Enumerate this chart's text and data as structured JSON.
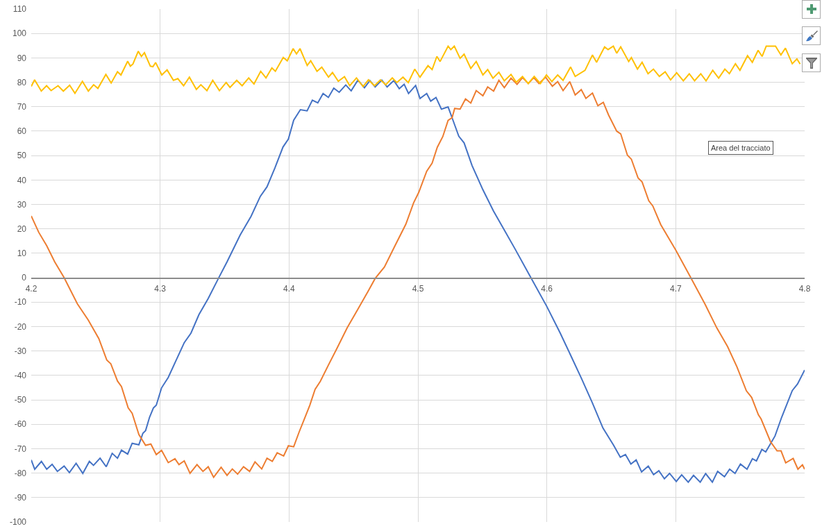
{
  "chart_data": {
    "type": "line",
    "xlim": [
      4.2,
      4.8
    ],
    "xticks": [
      4.2,
      4.3,
      4.4,
      4.5,
      4.6,
      4.7,
      4.8
    ],
    "ylim": [
      -100,
      110
    ],
    "yticks": [
      -100,
      -90,
      -80,
      -70,
      -60,
      -50,
      -40,
      -30,
      -20,
      -10,
      0,
      10,
      20,
      30,
      40,
      50,
      60,
      70,
      80,
      90,
      100,
      110
    ],
    "grid": true,
    "annotations": [
      "Area del tracciato"
    ],
    "series": [
      {
        "color": "#4472c4",
        "x": [
          4.2,
          4.2027,
          4.2079,
          4.212,
          4.2162,
          4.2203,
          4.2255,
          4.2296,
          4.2348,
          4.24,
          4.2451,
          4.2483,
          4.2534,
          4.2582,
          4.2628,
          4.2669,
          4.27,
          4.2748,
          4.2783,
          4.2835,
          4.2866,
          4.2887,
          4.2918,
          4.2948,
          4.297,
          4.3011,
          4.3063,
          4.3125,
          4.3187,
          4.3239,
          4.3301,
          4.3373,
          4.3452,
          4.3519,
          4.3621,
          4.3705,
          4.3777,
          4.3829,
          4.389,
          4.3953,
          4.3995,
          4.4036,
          4.4088,
          4.414,
          4.4181,
          4.4223,
          4.4264,
          4.4305,
          4.4347,
          4.4389,
          4.444,
          4.4482,
          4.4534,
          4.4585,
          4.4627,
          4.4668,
          4.472,
          4.4761,
          4.4813,
          4.4855,
          4.4893,
          4.4927,
          4.4982,
          4.5016,
          4.5068,
          4.5099,
          4.514,
          4.5182,
          4.5234,
          4.5264,
          4.5317,
          4.5358,
          4.542,
          4.5503,
          4.5586,
          4.5668,
          4.5751,
          4.5865,
          4.6,
          4.6104,
          4.6187,
          4.6269,
          4.6352,
          4.6435,
          4.6518,
          4.657,
          4.661,
          4.6652,
          4.6693,
          4.6735,
          4.6787,
          4.6828,
          4.6869,
          4.6912,
          4.6952,
          4.7004,
          4.7046,
          4.7097,
          4.7138,
          4.719,
          4.7232,
          4.7284,
          4.7325,
          4.7378,
          4.7418,
          4.746,
          4.7502,
          4.7553,
          4.7595,
          4.7626,
          4.7668,
          4.7698,
          4.777,
          4.7822,
          4.7904,
          4.7945,
          4.8
        ],
        "values": [
          -74.6,
          -78.4,
          -75.2,
          -78.4,
          -76.4,
          -79.3,
          -77.1,
          -79.8,
          -76,
          -80.1,
          -75.2,
          -76.8,
          -73.9,
          -77.4,
          -71.9,
          -73.9,
          -70.6,
          -72.2,
          -67.8,
          -68.4,
          -63.7,
          -62.6,
          -57.1,
          -53.3,
          -52.2,
          -45.1,
          -40.8,
          -33.7,
          -26.6,
          -22.7,
          -15.1,
          -8.5,
          -0.3,
          6.5,
          17.5,
          25.1,
          33.3,
          37.2,
          44.9,
          53.5,
          56.8,
          64.5,
          68.8,
          68.3,
          72.7,
          71.6,
          75.4,
          73.8,
          77.6,
          75.9,
          78.9,
          76.5,
          80.9,
          77.8,
          80.7,
          78.1,
          80.9,
          78.1,
          80.7,
          77.4,
          79.2,
          75.4,
          78.7,
          73.4,
          75.4,
          72.3,
          73.8,
          69,
          69.9,
          65.6,
          57.9,
          55.2,
          45.9,
          36.1,
          27.3,
          19.7,
          12,
          1.1,
          -11.8,
          -22.7,
          -32,
          -41.3,
          -51.1,
          -61.5,
          -68.6,
          -73.5,
          -72.4,
          -76.3,
          -74.6,
          -79.5,
          -77.1,
          -80.6,
          -79,
          -82.3,
          -80.1,
          -83.4,
          -80.7,
          -83.7,
          -80.9,
          -83.7,
          -80.2,
          -83.7,
          -79.3,
          -81.5,
          -78.4,
          -80.1,
          -76.3,
          -78.4,
          -74.1,
          -75,
          -70.3,
          -71.3,
          -64.8,
          -57.1,
          -46.2,
          -43.5,
          -37.8
        ]
      },
      {
        "color": "#ed7d31",
        "x": [
          4.2,
          4.2058,
          4.212,
          4.2182,
          4.2255,
          4.2358,
          4.2442,
          4.2524,
          4.2586,
          4.2617,
          4.2669,
          4.27,
          4.2752,
          4.2783,
          4.2835,
          4.2887,
          4.2928,
          4.297,
          4.3011,
          4.3063,
          4.3115,
          4.3146,
          4.3187,
          4.3232,
          4.3286,
          4.3332,
          4.3373,
          4.3415,
          4.3473,
          4.3519,
          4.356,
          4.3601,
          4.3647,
          4.3694,
          4.3736,
          4.3788,
          4.3829,
          4.387,
          4.3908,
          4.3958,
          4.3995,
          4.4036,
          4.4078,
          4.412,
          4.4161,
          4.4202,
          4.4243,
          4.4305,
          4.4368,
          4.4451,
          4.4534,
          4.4616,
          4.4668,
          4.474,
          4.4822,
          4.4906,
          4.4966,
          4.5006,
          4.5068,
          4.511,
          4.515,
          4.5193,
          4.5234,
          4.5265,
          4.5285,
          4.5327,
          4.5369,
          4.541,
          4.5452,
          4.5504,
          4.5541,
          4.5587,
          4.5628,
          4.567,
          4.5722,
          4.5769,
          4.5811,
          4.5856,
          4.5898,
          4.5939,
          4.599,
          4.6043,
          4.6084,
          4.6126,
          4.6178,
          4.622,
          4.6267,
          4.6303,
          4.6354,
          4.6396,
          4.6438,
          4.6479,
          4.6542,
          4.6573,
          4.6625,
          4.6656,
          4.6708,
          4.6739,
          4.6791,
          4.6822,
          4.6884,
          4.7,
          4.7113,
          4.7226,
          4.7319,
          4.7402,
          4.7475,
          4.7548,
          4.7589,
          4.7641,
          4.7662,
          4.7735,
          4.7786,
          4.7817,
          4.7853,
          4.7911,
          4.7948,
          4.7983,
          4.8
        ],
        "values": [
          25.3,
          18.6,
          13.1,
          6.5,
          0,
          -10.7,
          -17.3,
          -24.9,
          -33.7,
          -35.2,
          -42.3,
          -44.6,
          -53.3,
          -55.5,
          -64.2,
          -68.6,
          -68.1,
          -72.4,
          -70.7,
          -75.7,
          -74.1,
          -76.5,
          -75,
          -80.1,
          -76.5,
          -79.3,
          -77.4,
          -81.7,
          -77.6,
          -80.9,
          -78.3,
          -80.4,
          -77.4,
          -79.3,
          -75.4,
          -78.3,
          -73.9,
          -75.2,
          -71.7,
          -73,
          -68.8,
          -69.2,
          -63.2,
          -57.7,
          -52.2,
          -45.7,
          -42.4,
          -35.8,
          -29.3,
          -20.5,
          -12.9,
          -5.3,
          -0.3,
          4.4,
          13.1,
          21.9,
          30.6,
          34.9,
          43.6,
          46.9,
          53.4,
          57.8,
          64.4,
          65.5,
          69.3,
          69,
          73.2,
          71.5,
          76.6,
          74.5,
          78.1,
          76.4,
          80.8,
          77.8,
          81.7,
          79.2,
          81.9,
          79.5,
          81.9,
          79.5,
          82.1,
          78.4,
          80.3,
          76.6,
          80.3,
          74.8,
          77,
          73.4,
          75.6,
          70.4,
          71.8,
          66.6,
          60,
          58.9,
          50.2,
          48.5,
          40.8,
          39.2,
          31.5,
          29.4,
          21.7,
          11.3,
          0.4,
          -10.7,
          -20.6,
          -28.2,
          -36.5,
          -46.3,
          -49,
          -56.1,
          -57.8,
          -67.1,
          -70.9,
          -70.9,
          -75.8,
          -74,
          -78.4,
          -76.6,
          -78.4
        ]
      },
      {
        "color": "#ffc000",
        "x": [
          4.2,
          4.2026,
          4.2078,
          4.2119,
          4.2154,
          4.2208,
          4.2249,
          4.2298,
          4.2339,
          4.2397,
          4.2443,
          4.2484,
          4.2517,
          4.2579,
          4.262,
          4.2669,
          4.2696,
          4.2748,
          4.2769,
          4.2789,
          4.283,
          4.2855,
          4.2878,
          4.2924,
          4.2944,
          4.2965,
          4.3013,
          4.3054,
          4.3103,
          4.3137,
          4.3182,
          4.3227,
          4.3281,
          4.3316,
          4.3363,
          4.3408,
          4.346,
          4.3512,
          4.3542,
          4.3594,
          4.3636,
          4.3687,
          4.3728,
          4.378,
          4.3821,
          4.3867,
          4.3894,
          4.3955,
          4.3986,
          4.4032,
          4.4058,
          4.4085,
          4.4141,
          4.4168,
          4.4217,
          4.4254,
          4.4306,
          4.4337,
          4.4382,
          4.443,
          4.4471,
          4.4523,
          4.4574,
          4.4616,
          4.4663,
          4.4709,
          4.475,
          4.4801,
          4.4836,
          4.4884,
          4.4925,
          4.4975,
          4.5016,
          4.5078,
          4.511,
          4.5147,
          4.5172,
          4.5234,
          4.5255,
          4.5282,
          4.5327,
          4.5358,
          4.541,
          4.5452,
          4.5504,
          4.5541,
          4.5582,
          4.5628,
          4.567,
          4.5722,
          4.5763,
          4.5811,
          4.5856,
          4.5902,
          4.595,
          4.5997,
          4.6039,
          4.6084,
          4.6126,
          4.6184,
          4.622,
          4.6296,
          4.6354,
          4.6386,
          4.6448,
          4.6475,
          4.6516,
          4.6542,
          4.6573,
          4.6635,
          4.6656,
          4.6703,
          4.6739,
          4.6785,
          4.6827,
          4.6873,
          4.6918,
          4.696,
          4.7007,
          4.7059,
          4.7105,
          4.7146,
          4.7194,
          4.7235,
          4.7287,
          4.7333,
          4.7381,
          4.7416,
          4.7463,
          4.7498,
          4.7557,
          4.7594,
          4.7639,
          4.767,
          4.7702,
          4.7774,
          4.7816,
          4.7851,
          4.7904,
          4.794,
          4.7965
        ],
        "values": [
          78.3,
          81,
          76.4,
          78.6,
          76.6,
          78.6,
          76.4,
          78.8,
          75.5,
          80.4,
          76.4,
          79,
          77.5,
          83.2,
          79.7,
          84.3,
          83,
          88.6,
          86.6,
          87.5,
          92.7,
          90.6,
          92.1,
          86.6,
          86.4,
          88.1,
          83,
          85.1,
          80.8,
          81.5,
          78.6,
          82.1,
          77.1,
          79,
          76.6,
          80.8,
          76.6,
          79.9,
          77.9,
          80.8,
          78.6,
          81.8,
          79.3,
          84.5,
          81.8,
          85.9,
          84.5,
          90.2,
          88.8,
          93.8,
          91.6,
          93.8,
          86.9,
          88.8,
          84.5,
          86.2,
          82.1,
          84,
          80.4,
          82.3,
          78.6,
          81.8,
          78.3,
          81,
          78.6,
          81,
          79,
          81.8,
          79.9,
          82.1,
          79.9,
          85.4,
          82.1,
          86.8,
          85.2,
          90.6,
          88.5,
          94.8,
          93.4,
          94.8,
          89.8,
          91.5,
          85.7,
          88.5,
          83,
          85.2,
          81.7,
          84.1,
          80.6,
          83.2,
          80,
          82.4,
          79.5,
          82.4,
          79.5,
          83,
          80.3,
          83,
          80.8,
          86.3,
          82.4,
          84.9,
          91.2,
          88.2,
          94.5,
          93.4,
          94.8,
          91.9,
          94.5,
          88.5,
          90.1,
          85.4,
          88.2,
          83.5,
          85.4,
          82.4,
          84.3,
          81,
          83.9,
          80.6,
          83.5,
          80.6,
          83.5,
          80.6,
          84.9,
          81.7,
          85.4,
          83.5,
          87.6,
          84.9,
          90.9,
          88.2,
          93.1,
          90.6,
          94.8,
          94.8,
          91.2,
          94,
          87.6,
          89.6,
          87.5
        ]
      }
    ]
  }
}
